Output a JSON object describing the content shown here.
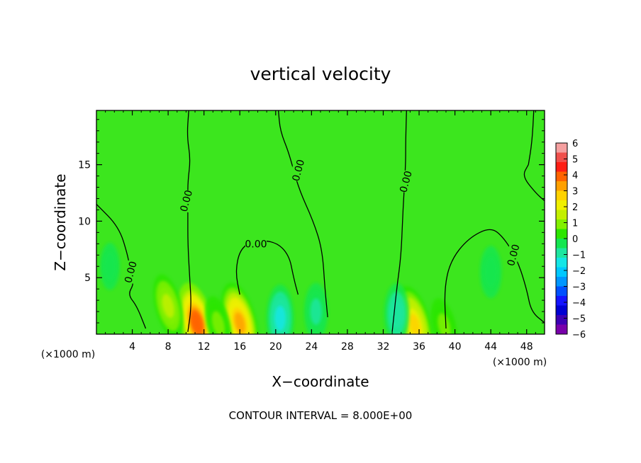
{
  "chart_data": {
    "type": "heatmap",
    "title": "vertical velocity",
    "xlabel": "X−coordinate",
    "ylabel": "Z−coordinate",
    "x_unit_label": "(×1000 m)",
    "z_unit_label": "(×1000 m)",
    "xlim": [
      0,
      50
    ],
    "ylim": [
      0,
      19.8
    ],
    "x_ticks": [
      4,
      8,
      12,
      16,
      20,
      24,
      28,
      32,
      36,
      40,
      44,
      48
    ],
    "y_ticks": [
      5,
      10,
      15
    ],
    "colorbar": {
      "ticks": [
        "6",
        "5",
        "4",
        "3",
        "2",
        "1",
        "0",
        "−1",
        "−2",
        "−3",
        "−4",
        "−5",
        "−6"
      ],
      "range": [
        -6,
        6
      ],
      "colors": [
        "#f5a0a0",
        "#f0504c",
        "#ff1e14",
        "#ff6400",
        "#ffa000",
        "#ffd200",
        "#f0f000",
        "#c3f000",
        "#82f000",
        "#2ce600",
        "#14e650",
        "#1ee6a0",
        "#14e6e6",
        "#00c8ff",
        "#0096ff",
        "#0050ff",
        "#1414ff",
        "#0000d2",
        "#3c00b4",
        "#7800aa"
      ]
    },
    "contour_label": "0.00",
    "contour_interval_text": "CONTOUR INTERVAL =  8.000E+00",
    "background_color": "#3ce61e",
    "features": [
      {
        "kind": "updraft",
        "x": 11.2,
        "z": 1.0,
        "w": 4.5
      },
      {
        "kind": "updraft",
        "x": 16.0,
        "z": 1.0,
        "w": 3.5
      },
      {
        "kind": "updraft",
        "x": 35.5,
        "z": 0.8,
        "w": 3.0
      },
      {
        "kind": "updraft",
        "x": 8.0,
        "z": 2.5,
        "w": 1.8
      },
      {
        "kind": "updraft",
        "x": 13.6,
        "z": 0.9,
        "w": 1.2
      },
      {
        "kind": "updraft",
        "x": 38.8,
        "z": 0.7,
        "w": 1.2
      },
      {
        "kind": "downdraft",
        "x": 20.5,
        "z": 1.4,
        "w": -2.0
      },
      {
        "kind": "downdraft",
        "x": 24.5,
        "z": 2.0,
        "w": -1.2
      },
      {
        "kind": "downdraft",
        "x": 33.5,
        "z": 1.8,
        "w": -1.5
      },
      {
        "kind": "downdraft",
        "x": 44.0,
        "z": 5.5,
        "w": -0.8
      },
      {
        "kind": "downdraft",
        "x": 1.5,
        "z": 6.0,
        "w": -0.4
      }
    ],
    "contours": [
      {
        "label": "0.00",
        "label_at": [
          10.0,
          11.8
        ],
        "points": [
          [
            10.2,
            0.2
          ],
          [
            10.6,
            2.5
          ],
          [
            10.4,
            5.0
          ],
          [
            10.2,
            8.0
          ],
          [
            10.2,
            10.5
          ],
          [
            10.2,
            12.0
          ],
          [
            10.2,
            13.5
          ],
          [
            10.5,
            15.5
          ],
          [
            10.1,
            17.5
          ],
          [
            10.3,
            19.8
          ]
        ]
      },
      {
        "label": "0.00",
        "label_at": [
          22.5,
          14.5
        ],
        "points": [
          [
            25.8,
            1.5
          ],
          [
            25.5,
            4.0
          ],
          [
            25.2,
            7.5
          ],
          [
            24.2,
            10.0
          ],
          [
            22.5,
            13.0
          ],
          [
            21.5,
            16.0
          ],
          [
            20.5,
            18.0
          ],
          [
            20.3,
            19.8
          ]
        ]
      },
      {
        "label": "0.00",
        "label_at": [
          34.5,
          13.5
        ],
        "points": [
          [
            33.0,
            0.2
          ],
          [
            33.5,
            4.0
          ],
          [
            34.0,
            7.0
          ],
          [
            34.2,
            11.0
          ],
          [
            34.5,
            15.0
          ],
          [
            34.5,
            17.0
          ],
          [
            34.6,
            19.8
          ]
        ]
      },
      {
        "label": "0.00",
        "label_at": [
          17.8,
          8.0
        ],
        "points": [
          [
            16.0,
            3.5
          ],
          [
            15.5,
            5.5
          ],
          [
            16.0,
            7.5
          ],
          [
            17.5,
            8.3
          ],
          [
            20.0,
            8.2
          ],
          [
            21.5,
            7.0
          ],
          [
            22.0,
            5.0
          ],
          [
            22.5,
            3.5
          ]
        ]
      },
      {
        "label": "0.00",
        "label_at": [
          3.8,
          5.5
        ],
        "points": [
          [
            0.0,
            11.5
          ],
          [
            2.5,
            9.5
          ],
          [
            3.5,
            7.0
          ],
          [
            3.8,
            5.5
          ],
          [
            4.2,
            4.5
          ],
          [
            3.5,
            3.5
          ],
          [
            4.5,
            2.5
          ],
          [
            5.5,
            0.5
          ]
        ]
      },
      {
        "label": "0.00",
        "label_at": [
          46.5,
          7.0
        ],
        "points": [
          [
            39.0,
            0.5
          ],
          [
            38.8,
            4.0
          ],
          [
            39.5,
            6.5
          ],
          [
            41.5,
            8.5
          ],
          [
            44.0,
            9.5
          ],
          [
            45.5,
            8.5
          ],
          [
            47.0,
            6.5
          ],
          [
            48.0,
            4.0
          ],
          [
            48.5,
            2.0
          ],
          [
            50.0,
            1.0
          ]
        ]
      },
      {
        "label": "",
        "label_at": null,
        "points": [
          [
            48.2,
            15.0
          ],
          [
            47.5,
            14.0
          ],
          [
            49.0,
            12.5
          ],
          [
            50.0,
            11.8
          ]
        ]
      },
      {
        "label": "",
        "label_at": null,
        "points": [
          [
            48.2,
            15.0
          ],
          [
            48.6,
            17.0
          ],
          [
            48.8,
            19.8
          ]
        ]
      }
    ]
  }
}
